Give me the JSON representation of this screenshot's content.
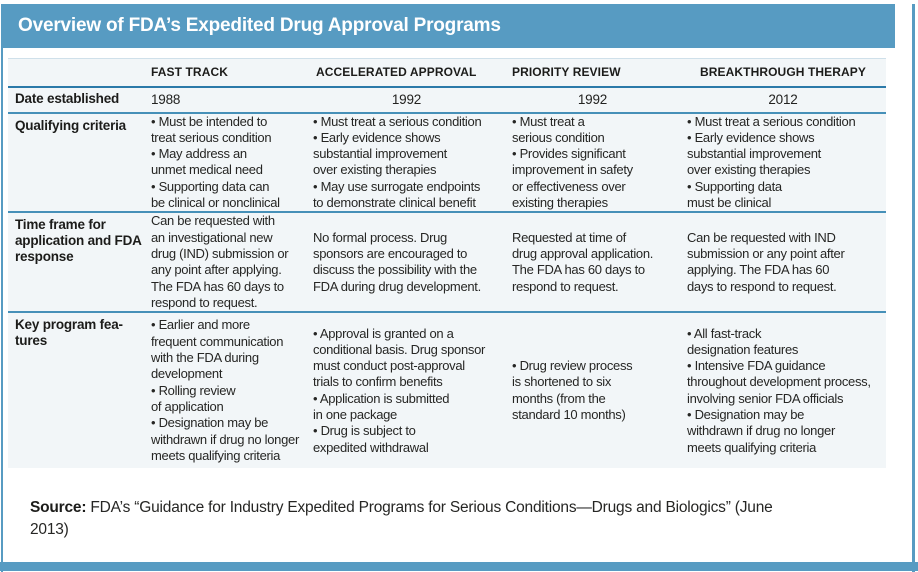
{
  "title": "Overview of FDA’s Expedited Drug Approval Programs",
  "colors": {
    "accent_blue": "#579bc2",
    "table_background": "#f2f6f8",
    "header_divider": "#2c7aa9",
    "row_divider": "#4690b8",
    "text": "#222220"
  },
  "table": {
    "columns": [
      "FAST TRACK",
      "ACCELERATED APPROVAL",
      "PRIORITY REVIEW",
      "BREAKTHROUGH THERAPY"
    ],
    "rows": {
      "date": {
        "label": "Date established",
        "cells": [
          "1988",
          "1992",
          "1992",
          "2012"
        ]
      },
      "qualifying": {
        "label": "Qualifying criteria",
        "cells": [
          "• Must be intended to\ntreat serious condition\n• May address an\nunmet medical need\n• Supporting data can\nbe clinical or nonclinical",
          "• Must treat a serious condition\n• Early evidence shows\nsubstantial improvement\nover existing therapies\n• May use surrogate endpoints\nto demonstrate clinical benefit",
          "• Must treat a\nserious condition\n• Provides significant\nimprovement in safety\nor effectiveness over\nexisting therapies",
          "• Must treat a serious condition\n• Early evidence shows\nsubstantial improvement\nover existing therapies\n• Supporting data\nmust be clinical"
        ]
      },
      "timeframe": {
        "label": "Time frame for\napplication and FDA\nresponse",
        "cells": [
          "Can be requested with\nan investigational new\ndrug (IND) submission or\nany point after applying.\nThe FDA has 60 days to\nrespond to request.",
          "No formal process. Drug\nsponsors are encouraged to\ndiscuss the possibility with the\nFDA during drug development.",
          "Requested at time of\ndrug approval application.\nThe FDA has 60 days to\nrespond to request.",
          "Can be requested with IND\nsubmission or any point after\napplying. The FDA has 60\ndays to respond to request."
        ]
      },
      "features": {
        "label": "Key program fea-\ntures",
        "cells": [
          "• Earlier and more\nfrequent communication\nwith the FDA during\ndevelopment\n• Rolling review\nof application\n• Designation may be\nwithdrawn if drug no longer\nmeets qualifying criteria",
          "• Approval is granted on a\nconditional basis. Drug sponsor\nmust conduct post-approval\ntrials to confirm benefits\n• Application is submitted\nin one package\n• Drug is subject to\nexpedited withdrawal",
          "• Drug review process\nis shortened to six\nmonths (from the\nstandard 10 months)",
          "• All fast-track\ndesignation features\n• Intensive FDA guidance\nthroughout development process,\ninvolving senior FDA officials\n• Designation may be\nwithdrawn if drug no longer\nmeets qualifying criteria"
        ]
      }
    }
  },
  "source": {
    "label": "Source:",
    "text": " FDA’s “Guidance for Industry Expedited Programs for Serious Conditions—Drugs and Biologics” (June\n2013)"
  }
}
